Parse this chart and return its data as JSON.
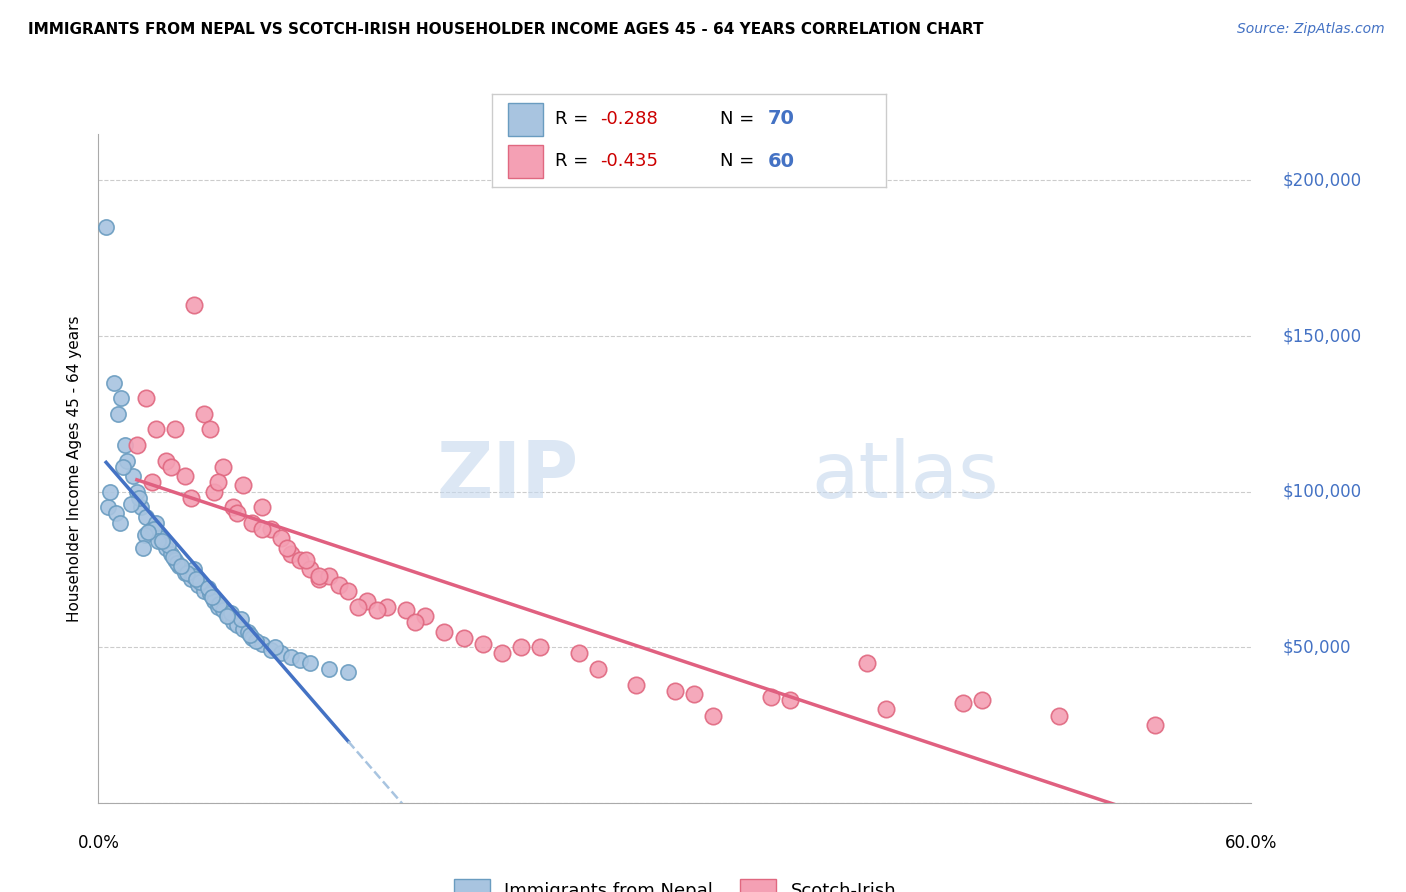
{
  "title": "IMMIGRANTS FROM NEPAL VS SCOTCH-IRISH HOUSEHOLDER INCOME AGES 45 - 64 YEARS CORRELATION CHART",
  "source": "Source: ZipAtlas.com",
  "ylabel": "Householder Income Ages 45 - 64 years",
  "y_ticks": [
    0,
    50000,
    100000,
    150000,
    200000
  ],
  "y_tick_labels": [
    "",
    "$50,000",
    "$100,000",
    "$150,000",
    "$200,000"
  ],
  "x_min": 0.0,
  "x_max": 60.0,
  "y_min": 0,
  "y_max": 215000,
  "nepal_R": -0.288,
  "nepal_N": 70,
  "scotch_R": -0.435,
  "scotch_N": 60,
  "nepal_color": "#a8c4e0",
  "nepal_edge_color": "#6a9cc0",
  "scotch_color": "#f4a0b4",
  "scotch_edge_color": "#e06880",
  "nepal_line_color": "#4472c4",
  "scotch_line_color": "#e06080",
  "legend_label_nepal": "Immigrants from Nepal",
  "legend_label_scotch": "Scotch-Irish",
  "nepal_points_x": [
    0.5,
    0.8,
    1.2,
    1.5,
    1.8,
    2.0,
    2.2,
    2.5,
    2.8,
    3.0,
    3.2,
    3.5,
    3.8,
    4.0,
    4.2,
    4.5,
    4.8,
    5.0,
    5.2,
    5.5,
    5.8,
    6.0,
    6.2,
    6.5,
    6.8,
    7.0,
    7.2,
    7.5,
    7.8,
    8.0,
    8.5,
    9.0,
    9.5,
    10.0,
    10.5,
    11.0,
    12.0,
    13.0,
    1.0,
    1.3,
    2.1,
    2.9,
    3.6,
    4.1,
    4.9,
    5.3,
    0.6,
    0.9,
    1.7,
    2.4,
    3.1,
    3.9,
    4.6,
    5.1,
    5.7,
    6.3,
    6.9,
    7.4,
    8.2,
    9.2,
    1.1,
    2.6,
    0.4,
    2.3,
    1.4,
    4.3,
    3.3,
    5.9,
    6.7,
    7.9
  ],
  "nepal_points_y": [
    95000,
    135000,
    130000,
    110000,
    105000,
    100000,
    95000,
    92000,
    88000,
    90000,
    85000,
    82000,
    80000,
    78000,
    76000,
    74000,
    72000,
    75000,
    70000,
    68000,
    67000,
    65000,
    63000,
    62000,
    60000,
    58000,
    57000,
    56000,
    55000,
    53000,
    51000,
    49000,
    48000,
    47000,
    46000,
    45000,
    43000,
    42000,
    125000,
    108000,
    98000,
    88000,
    83000,
    77000,
    73000,
    71000,
    100000,
    93000,
    96000,
    86000,
    84000,
    79000,
    74000,
    72000,
    69000,
    64000,
    61000,
    59000,
    52000,
    50000,
    90000,
    87000,
    185000,
    82000,
    115000,
    76000,
    84000,
    66000,
    60000,
    54000
  ],
  "scotch_points_x": [
    2.0,
    2.5,
    3.0,
    3.5,
    4.0,
    4.5,
    5.0,
    5.5,
    6.0,
    6.5,
    7.0,
    7.5,
    8.0,
    8.5,
    9.0,
    9.5,
    10.0,
    10.5,
    11.0,
    11.5,
    12.0,
    12.5,
    13.0,
    14.0,
    15.0,
    16.0,
    17.0,
    18.0,
    19.0,
    20.0,
    22.0,
    25.0,
    28.0,
    30.0,
    35.0,
    40.0,
    45.0,
    50.0,
    55.0,
    2.8,
    3.8,
    4.8,
    6.2,
    7.2,
    8.5,
    9.8,
    11.5,
    13.5,
    16.5,
    21.0,
    26.0,
    31.0,
    36.0,
    41.0,
    5.8,
    10.8,
    14.5,
    23.0,
    32.0,
    46.0
  ],
  "scotch_points_y": [
    115000,
    130000,
    120000,
    110000,
    120000,
    105000,
    160000,
    125000,
    100000,
    108000,
    95000,
    102000,
    90000,
    95000,
    88000,
    85000,
    80000,
    78000,
    75000,
    72000,
    73000,
    70000,
    68000,
    65000,
    63000,
    62000,
    60000,
    55000,
    53000,
    51000,
    50000,
    48000,
    38000,
    36000,
    34000,
    45000,
    32000,
    28000,
    25000,
    103000,
    108000,
    98000,
    103000,
    93000,
    88000,
    82000,
    73000,
    63000,
    58000,
    48000,
    43000,
    35000,
    33000,
    30000,
    120000,
    78000,
    62000,
    50000,
    28000,
    33000
  ]
}
